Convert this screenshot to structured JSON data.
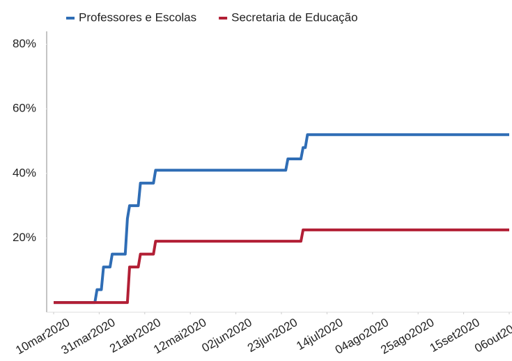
{
  "chart_data": {
    "type": "line",
    "x": [
      "2020-03-10",
      "2020-03-29",
      "2020-03-30",
      "2020-04-01",
      "2020-04-02",
      "2020-04-05",
      "2020-04-06",
      "2020-04-12",
      "2020-04-13",
      "2020-04-14",
      "2020-04-18",
      "2020-04-19",
      "2020-04-25",
      "2020-04-26",
      "2020-06-25",
      "2020-06-26",
      "2020-07-02",
      "2020-07-03",
      "2020-07-04",
      "2020-07-05",
      "2020-10-06"
    ],
    "series": [
      {
        "name": "Professores e Escolas",
        "color": "#2f6db5",
        "values": [
          0,
          0,
          4,
          4,
          11,
          11,
          15,
          15,
          26,
          30,
          30,
          37,
          37,
          41,
          41,
          44.5,
          44.5,
          48,
          48,
          52,
          52
        ]
      },
      {
        "name": "Secretaria de Educação",
        "color": "#b21f35",
        "values": [
          0,
          0,
          0,
          0,
          0,
          0,
          0,
          0,
          0,
          11,
          11,
          15,
          15,
          19,
          19,
          19,
          19,
          22.5,
          22.5,
          22.5,
          22.5
        ]
      }
    ],
    "xlim": [
      "2020-03-10",
      "2020-10-06"
    ],
    "xticks": [
      {
        "value": "2020-03-10",
        "label": "10mar2020"
      },
      {
        "value": "2020-03-31",
        "label": "31mar2020"
      },
      {
        "value": "2020-04-21",
        "label": "21abr2020"
      },
      {
        "value": "2020-05-12",
        "label": "12mai2020"
      },
      {
        "value": "2020-06-02",
        "label": "02jun2020"
      },
      {
        "value": "2020-06-23",
        "label": "23jun2020"
      },
      {
        "value": "2020-07-14",
        "label": "14jul2020"
      },
      {
        "value": "2020-08-04",
        "label": "04ago2020"
      },
      {
        "value": "2020-08-25",
        "label": "25ago2020"
      },
      {
        "value": "2020-09-15",
        "label": "15set2020"
      },
      {
        "value": "2020-10-06",
        "label": "06out2020"
      }
    ],
    "ylim": [
      -3,
      84
    ],
    "yticks": [
      {
        "value": 20,
        "label": "20%"
      },
      {
        "value": 40,
        "label": "40%"
      },
      {
        "value": 60,
        "label": "60%"
      },
      {
        "value": 80,
        "label": "80%"
      }
    ],
    "legend": "top"
  }
}
